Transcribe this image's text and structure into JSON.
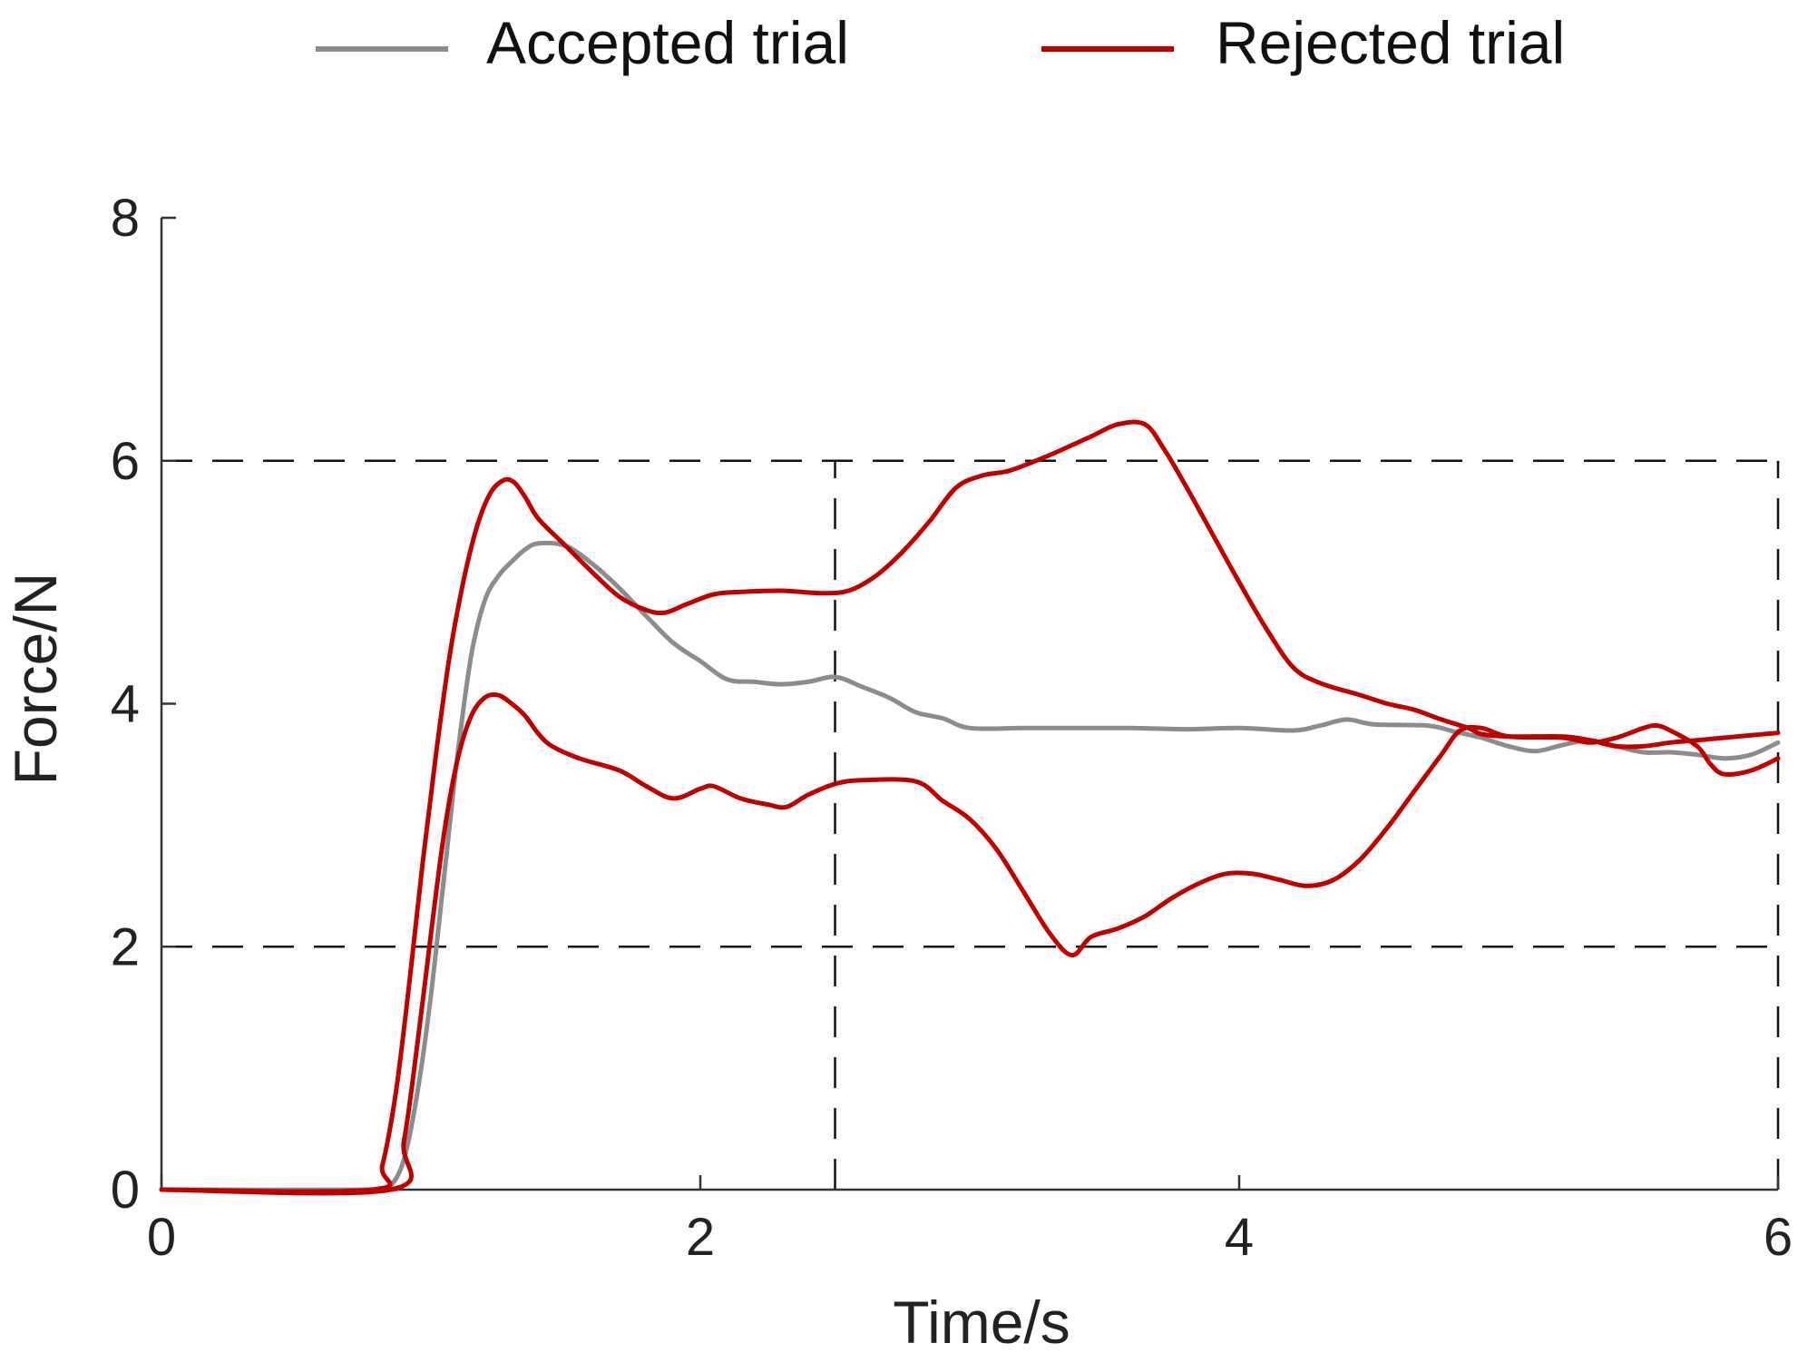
{
  "chart_data": {
    "type": "line",
    "title": "",
    "xlabel": "Time/s",
    "ylabel": "Force/N",
    "xlim": [
      0,
      6
    ],
    "ylim": [
      0,
      8
    ],
    "xticks": [
      0,
      2,
      4,
      6
    ],
    "yticks": [
      0,
      2,
      4,
      6,
      8
    ],
    "grid": false,
    "legend_position": "top",
    "reference_lines": [
      {
        "orientation": "horizontal",
        "value": 6,
        "x_from": 0,
        "x_to": 6
      },
      {
        "orientation": "horizontal",
        "value": 2,
        "x_from": 0,
        "x_to": 6
      },
      {
        "orientation": "vertical",
        "value": 2.5,
        "y_from": 0,
        "y_to": 6
      },
      {
        "orientation": "vertical",
        "value": 6,
        "y_from": 0,
        "y_to": 6
      }
    ],
    "series": [
      {
        "name": "Accepted trial",
        "color": "#8c8c8c",
        "points": [
          [
            0,
            0
          ],
          [
            0.8,
            0
          ],
          [
            0.85,
            0.03
          ],
          [
            0.9,
            0.25
          ],
          [
            0.95,
            0.8
          ],
          [
            1.0,
            1.6
          ],
          [
            1.05,
            2.6
          ],
          [
            1.1,
            3.6
          ],
          [
            1.15,
            4.4
          ],
          [
            1.2,
            4.85
          ],
          [
            1.25,
            5.05
          ],
          [
            1.3,
            5.17
          ],
          [
            1.35,
            5.27
          ],
          [
            1.4,
            5.32
          ],
          [
            1.5,
            5.3
          ],
          [
            1.6,
            5.15
          ],
          [
            1.7,
            4.95
          ],
          [
            1.8,
            4.72
          ],
          [
            1.9,
            4.5
          ],
          [
            2.0,
            4.35
          ],
          [
            2.1,
            4.2
          ],
          [
            2.2,
            4.18
          ],
          [
            2.3,
            4.16
          ],
          [
            2.4,
            4.18
          ],
          [
            2.5,
            4.22
          ],
          [
            2.6,
            4.14
          ],
          [
            2.7,
            4.05
          ],
          [
            2.8,
            3.93
          ],
          [
            2.9,
            3.88
          ],
          [
            3.0,
            3.8
          ],
          [
            3.2,
            3.8
          ],
          [
            3.4,
            3.8
          ],
          [
            3.6,
            3.8
          ],
          [
            3.8,
            3.79
          ],
          [
            4.0,
            3.8
          ],
          [
            4.2,
            3.78
          ],
          [
            4.3,
            3.82
          ],
          [
            4.4,
            3.87
          ],
          [
            4.5,
            3.83
          ],
          [
            4.7,
            3.82
          ],
          [
            4.8,
            3.77
          ],
          [
            4.9,
            3.72
          ],
          [
            5.0,
            3.65
          ],
          [
            5.1,
            3.61
          ],
          [
            5.2,
            3.66
          ],
          [
            5.3,
            3.7
          ],
          [
            5.4,
            3.65
          ],
          [
            5.5,
            3.6
          ],
          [
            5.6,
            3.6
          ],
          [
            5.7,
            3.58
          ],
          [
            5.8,
            3.55
          ],
          [
            5.9,
            3.58
          ],
          [
            6.0,
            3.68
          ]
        ]
      },
      {
        "name": "Rejected trial",
        "color": "#c00000",
        "points": [
          [
            0,
            0
          ],
          [
            0.78,
            0
          ],
          [
            0.82,
            0.2
          ],
          [
            0.87,
            0.8
          ],
          [
            0.92,
            1.7
          ],
          [
            0.97,
            2.7
          ],
          [
            1.02,
            3.6
          ],
          [
            1.07,
            4.4
          ],
          [
            1.12,
            5.0
          ],
          [
            1.17,
            5.45
          ],
          [
            1.22,
            5.73
          ],
          [
            1.27,
            5.84
          ],
          [
            1.31,
            5.82
          ],
          [
            1.35,
            5.7
          ],
          [
            1.4,
            5.52
          ],
          [
            1.5,
            5.3
          ],
          [
            1.6,
            5.08
          ],
          [
            1.7,
            4.88
          ],
          [
            1.8,
            4.77
          ],
          [
            1.87,
            4.75
          ],
          [
            1.95,
            4.82
          ],
          [
            2.05,
            4.9
          ],
          [
            2.15,
            4.92
          ],
          [
            2.3,
            4.93
          ],
          [
            2.45,
            4.91
          ],
          [
            2.55,
            4.93
          ],
          [
            2.65,
            5.05
          ],
          [
            2.75,
            5.25
          ],
          [
            2.85,
            5.5
          ],
          [
            2.95,
            5.78
          ],
          [
            3.05,
            5.88
          ],
          [
            3.15,
            5.92
          ],
          [
            3.3,
            6.05
          ],
          [
            3.45,
            6.2
          ],
          [
            3.55,
            6.3
          ],
          [
            3.65,
            6.3
          ],
          [
            3.72,
            6.1
          ],
          [
            3.8,
            5.8
          ],
          [
            3.9,
            5.4
          ],
          [
            4.0,
            5.0
          ],
          [
            4.1,
            4.62
          ],
          [
            4.2,
            4.3
          ],
          [
            4.3,
            4.17
          ],
          [
            4.45,
            4.07
          ],
          [
            4.55,
            4.0
          ],
          [
            4.65,
            3.95
          ],
          [
            4.75,
            3.87
          ],
          [
            4.85,
            3.8
          ],
          [
            4.9,
            3.75
          ],
          [
            5.0,
            3.73
          ],
          [
            5.2,
            3.73
          ],
          [
            5.3,
            3.7
          ],
          [
            5.4,
            3.65
          ],
          [
            5.5,
            3.65
          ],
          [
            5.6,
            3.68
          ],
          [
            5.7,
            3.7
          ],
          [
            5.8,
            3.72
          ],
          [
            5.9,
            3.74
          ],
          [
            6.0,
            3.76
          ]
        ]
      },
      {
        "name": "Rejected trial",
        "color": "#c00000",
        "points": [
          [
            0,
            0
          ],
          [
            0.85,
            0
          ],
          [
            0.9,
            0.4
          ],
          [
            0.95,
            1.2
          ],
          [
            1.0,
            2.1
          ],
          [
            1.05,
            2.95
          ],
          [
            1.1,
            3.55
          ],
          [
            1.15,
            3.9
          ],
          [
            1.2,
            4.05
          ],
          [
            1.25,
            4.07
          ],
          [
            1.3,
            4.0
          ],
          [
            1.35,
            3.9
          ],
          [
            1.4,
            3.75
          ],
          [
            1.45,
            3.65
          ],
          [
            1.55,
            3.55
          ],
          [
            1.7,
            3.45
          ],
          [
            1.8,
            3.32
          ],
          [
            1.9,
            3.22
          ],
          [
            2.0,
            3.3
          ],
          [
            2.05,
            3.32
          ],
          [
            2.15,
            3.22
          ],
          [
            2.25,
            3.17
          ],
          [
            2.32,
            3.15
          ],
          [
            2.4,
            3.25
          ],
          [
            2.5,
            3.34
          ],
          [
            2.6,
            3.37
          ],
          [
            2.8,
            3.36
          ],
          [
            2.9,
            3.2
          ],
          [
            3.0,
            3.05
          ],
          [
            3.1,
            2.8
          ],
          [
            3.2,
            2.45
          ],
          [
            3.3,
            2.1
          ],
          [
            3.38,
            1.93
          ],
          [
            3.45,
            2.08
          ],
          [
            3.55,
            2.15
          ],
          [
            3.65,
            2.25
          ],
          [
            3.75,
            2.4
          ],
          [
            3.85,
            2.52
          ],
          [
            3.95,
            2.6
          ],
          [
            4.05,
            2.6
          ],
          [
            4.15,
            2.55
          ],
          [
            4.25,
            2.5
          ],
          [
            4.35,
            2.55
          ],
          [
            4.45,
            2.72
          ],
          [
            4.55,
            2.98
          ],
          [
            4.65,
            3.28
          ],
          [
            4.75,
            3.58
          ],
          [
            4.82,
            3.78
          ],
          [
            4.9,
            3.8
          ],
          [
            5.0,
            3.73
          ],
          [
            5.2,
            3.72
          ],
          [
            5.3,
            3.68
          ],
          [
            5.4,
            3.72
          ],
          [
            5.5,
            3.8
          ],
          [
            5.55,
            3.82
          ],
          [
            5.6,
            3.78
          ],
          [
            5.7,
            3.65
          ],
          [
            5.75,
            3.5
          ],
          [
            5.8,
            3.42
          ],
          [
            5.9,
            3.45
          ],
          [
            6.0,
            3.55
          ]
        ]
      }
    ]
  }
}
